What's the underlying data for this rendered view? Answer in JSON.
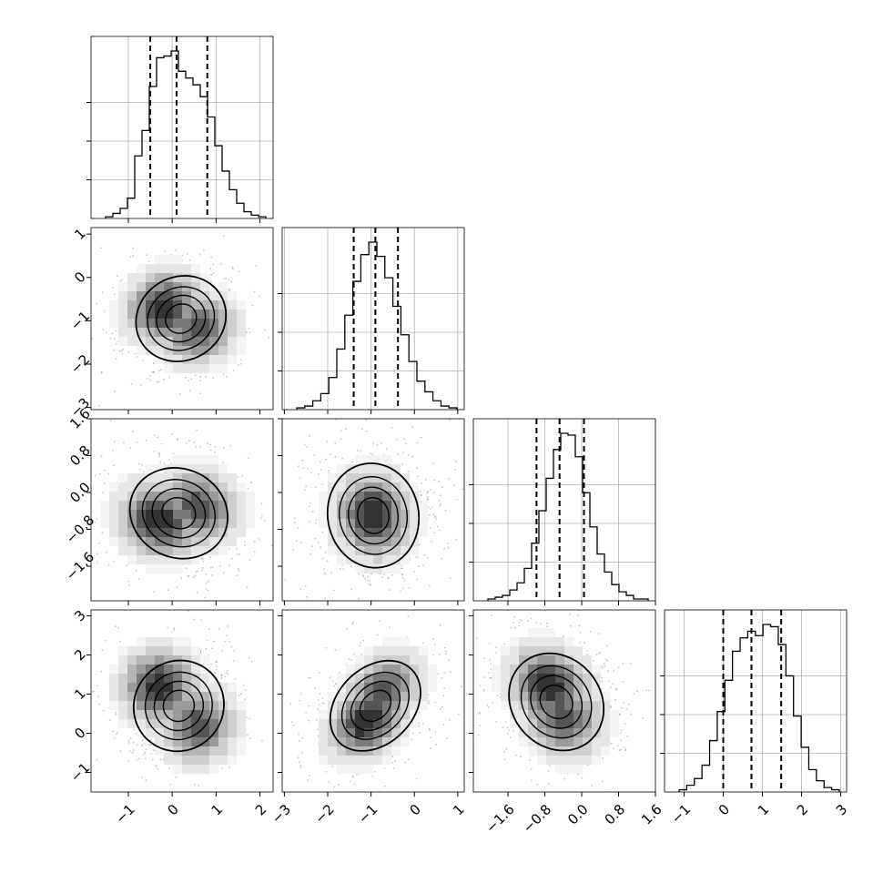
{
  "chart_data": {
    "type": "corner",
    "colors": {
      "axes": "#000000",
      "grid": "#b0b0b0",
      "scatter": "#555555",
      "hist_line": "#000000"
    },
    "parameters": [
      {
        "range": [
          -1.85,
          2.3
        ],
        "ticks": [
          -1,
          0,
          1,
          2
        ],
        "tick_labels": [
          "−1",
          "0",
          "1",
          "2"
        ],
        "quantiles": [
          -0.5,
          0.1,
          0.8
        ]
      },
      {
        "range": [
          -3.05,
          1.15
        ],
        "ticks": [
          -3,
          -2,
          -1,
          0,
          1
        ],
        "tick_labels": [
          "−3",
          "−2",
          "−1",
          "0",
          "1"
        ],
        "quantiles": [
          -1.4,
          -0.9,
          -0.38
        ]
      },
      {
        "range": [
          -2.35,
          1.6
        ],
        "ticks": [
          -1.6,
          -0.8,
          0.0,
          0.8,
          1.6
        ],
        "tick_labels": [
          "−1.6",
          "−0.8",
          "0.0",
          "0.8",
          "1.6"
        ],
        "quantiles": [
          -0.98,
          -0.48,
          0.05
        ]
      },
      {
        "range": [
          -1.5,
          3.15
        ],
        "ticks": [
          -1,
          0,
          1,
          2,
          3
        ],
        "tick_labels": [
          "−1",
          "0",
          "1",
          "2",
          "3"
        ],
        "quantiles": [
          0.0,
          0.72,
          1.48
        ]
      }
    ],
    "histograms": [
      {
        "parameter": 0,
        "counts": [
          0.01,
          0.03,
          0.06,
          0.12,
          0.37,
          0.52,
          0.78,
          0.95,
          0.96,
          0.99,
          0.87,
          0.83,
          0.79,
          0.72,
          0.6,
          0.43,
          0.28,
          0.17,
          0.09,
          0.04,
          0.02,
          0.01
        ]
      },
      {
        "parameter": 1,
        "counts": [
          0.01,
          0.02,
          0.05,
          0.09,
          0.18,
          0.34,
          0.53,
          0.72,
          0.87,
          0.94,
          0.86,
          0.74,
          0.58,
          0.42,
          0.27,
          0.16,
          0.1,
          0.05,
          0.02,
          0.01
        ]
      },
      {
        "parameter": 2,
        "counts": [
          0.01,
          0.02,
          0.03,
          0.06,
          0.1,
          0.18,
          0.32,
          0.5,
          0.68,
          0.84,
          0.93,
          0.92,
          0.8,
          0.6,
          0.41,
          0.26,
          0.16,
          0.09,
          0.05,
          0.03,
          0.01,
          0.01
        ]
      },
      {
        "parameter": 3,
        "counts": [
          0.01,
          0.03,
          0.06,
          0.12,
          0.23,
          0.36,
          0.5,
          0.63,
          0.69,
          0.72,
          0.7,
          0.75,
          0.74,
          0.66,
          0.52,
          0.34,
          0.2,
          0.1,
          0.05,
          0.02,
          0.01
        ]
      }
    ],
    "pairs": [
      {
        "x": 0,
        "y": 1,
        "mode_x": -0.2,
        "mode_y": -0.7,
        "mode2_x": 0.6,
        "mode2_y": -1.2,
        "sx": 0.6,
        "sy": 0.55,
        "angle": -30
      },
      {
        "x": 0,
        "y": 2,
        "mode_x": -0.3,
        "mode_y": -0.6,
        "mode2_x": 0.6,
        "mode2_y": -0.3,
        "sx": 0.65,
        "sy": 0.55,
        "angle": 25
      },
      {
        "x": 1,
        "y": 2,
        "mode_x": -0.95,
        "mode_y": -0.5,
        "mode2_x": -0.95,
        "mode2_y": -0.5,
        "sx": 0.6,
        "sy": 0.65,
        "angle": -10
      },
      {
        "x": 0,
        "y": 3,
        "mode_x": -0.3,
        "mode_y": 1.2,
        "mode2_x": 0.6,
        "mode2_y": 0.2,
        "sx": 0.6,
        "sy": 0.65,
        "angle": -50
      },
      {
        "x": 1,
        "y": 3,
        "mode_x": -1.1,
        "mode_y": 0.3,
        "mode2_x": -0.7,
        "mode2_y": 1.1,
        "sx": 0.5,
        "sy": 0.75,
        "angle": 45
      },
      {
        "x": 2,
        "y": 3,
        "mode_x": -0.7,
        "mode_y": 1.2,
        "mode2_x": -0.4,
        "mode2_y": 0.4,
        "sx": 0.55,
        "sy": 0.75,
        "angle": -40
      }
    ]
  }
}
